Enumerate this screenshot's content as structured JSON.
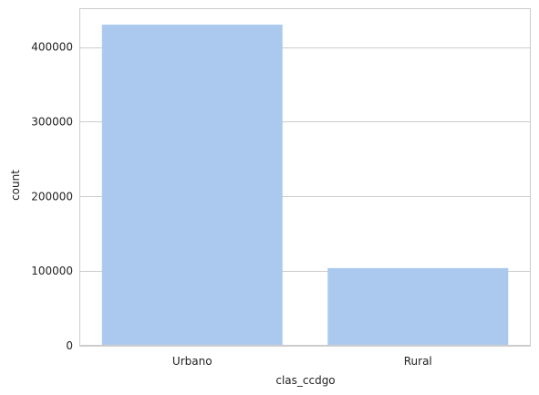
{
  "chart_data": {
    "type": "bar",
    "categories": [
      "Urbano",
      "Rural"
    ],
    "values": [
      430000,
      104000
    ],
    "xlabel": "clas_ccdgo",
    "ylabel": "count",
    "ylim": [
      0,
      452000
    ],
    "yticks": [
      0,
      100000,
      200000,
      300000,
      400000
    ],
    "ytick_labels": [
      "0",
      "100000",
      "200000",
      "300000",
      "400000"
    ],
    "grid": true,
    "bar_color": "#abc9ee",
    "grid_color": "#cccccc",
    "spine_color": "#cccccc"
  }
}
